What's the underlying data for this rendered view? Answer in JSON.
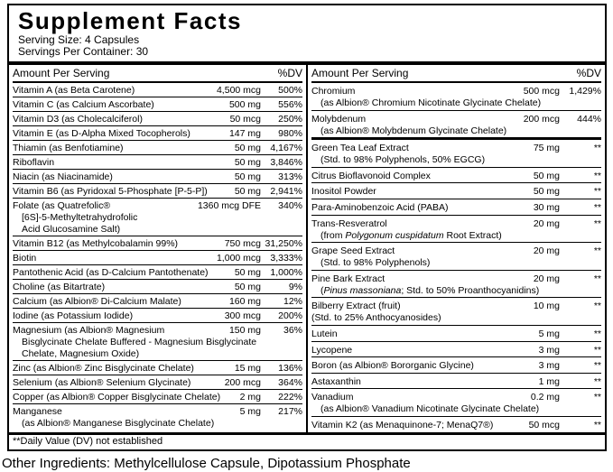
{
  "colors": {
    "background": "#ffffff",
    "text": "#000000",
    "border": "#000000"
  },
  "label": {
    "title": "Supplement Facts",
    "serving_size": "Serving Size: 4 Capsules",
    "servings_per_container": "Servings Per Container: 30",
    "column_header": {
      "amount": "Amount Per Serving",
      "dv": "%DV"
    },
    "footnote": "**Daily Value (DV) not established",
    "columns": {
      "left": {
        "rows": [
          {
            "name": "Vitamin A (as Beta Carotene)",
            "amount": "4,500 mcg",
            "dv": "500%"
          },
          {
            "name": "Vitamin C (as Calcium Ascorbate)",
            "amount": "500 mg",
            "dv": "556%"
          },
          {
            "name": "Vitamin D3 (as Cholecalciferol)",
            "amount": "50 mcg",
            "dv": "250%"
          },
          {
            "name": "Vitamin E (as D-Alpha Mixed Tocopherols)",
            "amount": "147 mg",
            "dv": "980%"
          },
          {
            "name": "Thiamin (as Benfotiamine)",
            "amount": "50 mg",
            "dv": "4,167%"
          },
          {
            "name": "Riboflavin",
            "amount": "50 mg",
            "dv": "3,846%"
          },
          {
            "name": "Niacin (as Niacinamide)",
            "amount": "50 mg",
            "dv": "313%"
          },
          {
            "name": "Vitamin B6 (as Pyridoxal 5-Phosphate [P-5-P])",
            "amount": "50 mg",
            "dv": "2,941%"
          },
          {
            "name": "Folate (as Quatrefolic®",
            "amount": "1360 mcg DFE",
            "dv": "340%",
            "sub": [
              {
                "segments": [
                  {
                    "text": "[6S]-5-Methyltetrahydrofolic"
                  }
                ]
              },
              {
                "segments": [
                  {
                    "text": "Acid Glucosamine Salt)"
                  }
                ]
              }
            ]
          },
          {
            "name": "Vitamin B12 (as Methylcobalamin 99%)",
            "amount": "750 mcg",
            "dv": "31,250%"
          },
          {
            "name": "Biotin",
            "amount": "1,000 mcg",
            "dv": "3,333%"
          },
          {
            "name": "Pantothenic Acid (as D-Calcium Pantothenate)",
            "amount": "50 mg",
            "dv": "1,000%"
          },
          {
            "name": "Choline (as Bitartrate)",
            "amount": "50 mg",
            "dv": "9%"
          },
          {
            "name": "Calcium (as Albion® Di-Calcium Malate)",
            "amount": "160 mg",
            "dv": "12%"
          },
          {
            "name": "Iodine (as Potassium Iodide)",
            "amount": "300 mcg",
            "dv": "200%"
          },
          {
            "name": "Magnesium (as Albion® Magnesium",
            "amount": "150 mg",
            "dv": "36%",
            "sub": [
              {
                "segments": [
                  {
                    "text": "Bisglycinate Chelate Buffered - Magnesium Bisglycinate"
                  }
                ]
              },
              {
                "segments": [
                  {
                    "text": "Chelate, Magnesium Oxide)"
                  }
                ]
              }
            ]
          },
          {
            "name": "Zinc (as Albion® Zinc Bisglycinate Chelate)",
            "amount": "15 mg",
            "dv": "136%"
          },
          {
            "name": "Selenium (as Albion® Selenium Glycinate)",
            "amount": "200 mcg",
            "dv": "364%"
          },
          {
            "name": "Copper (as Albion® Copper Bisglycinate Chelate)",
            "amount": "2 mg",
            "dv": "222%"
          },
          {
            "name": "Manganese",
            "amount": "5 mg",
            "dv": "217%",
            "sub": [
              {
                "segments": [
                  {
                    "text": "(as Albion® Manganese Bisglycinate Chelate)"
                  }
                ]
              }
            ]
          }
        ]
      },
      "right": {
        "rows": [
          {
            "name": "Chromium",
            "amount": "500 mcg",
            "dv": "1,429%",
            "sub": [
              {
                "segments": [
                  {
                    "text": "(as Albion® Chromium Nicotinate Glycinate Chelate)"
                  }
                ]
              }
            ]
          },
          {
            "name": "Molybdenum",
            "amount": "200 mcg",
            "dv": "444%",
            "sub": [
              {
                "segments": [
                  {
                    "text": "(as Albion® Molybdenum Glycinate Chelate)"
                  }
                ]
              }
            ]
          },
          {
            "name": "Green Tea Leaf Extract",
            "amount": "75 mg",
            "dv": "**",
            "thick_top": true,
            "sub": [
              {
                "segments": [
                  {
                    "text": "(Std. to 98% Polyphenols, 50% EGCG)"
                  }
                ]
              }
            ]
          },
          {
            "name": "Citrus Bioflavonoid Complex",
            "amount": "50 mg",
            "dv": "**"
          },
          {
            "name": "Inositol Powder",
            "amount": "50 mg",
            "dv": "**"
          },
          {
            "name": "Para-Aminobenzoic Acid (PABA)",
            "amount": "30 mg",
            "dv": "**"
          },
          {
            "name": "Trans-Resveratrol",
            "amount": "20 mg",
            "dv": "**",
            "sub": [
              {
                "segments": [
                  {
                    "text": "(from "
                  },
                  {
                    "text": "Polygonum cuspidatum",
                    "italic": true
                  },
                  {
                    "text": " Root Extract)"
                  }
                ]
              }
            ]
          },
          {
            "name": "Grape Seed Extract",
            "amount": "20 mg",
            "dv": "**",
            "sub": [
              {
                "segments": [
                  {
                    "text": "(Std. to 98% Polyphenols)"
                  }
                ]
              }
            ]
          },
          {
            "name": "Pine Bark Extract",
            "amount": "20 mg",
            "dv": "**",
            "sub": [
              {
                "segments": [
                  {
                    "text": "("
                  },
                  {
                    "text": "Pinus massoniana",
                    "italic": true
                  },
                  {
                    "text": "; Std. to 50% Proanthocyanidins)"
                  }
                ]
              }
            ]
          },
          {
            "name": "Bilberry Extract (fruit)",
            "amount": "10 mg",
            "dv": "**",
            "sub": [
              {
                "flush": true,
                "segments": [
                  {
                    "text": "(Std. to 25% Anthocyanosides)"
                  }
                ]
              }
            ]
          },
          {
            "name": "Lutein",
            "amount": "5 mg",
            "dv": "**"
          },
          {
            "name": "Lycopene",
            "amount": "3 mg",
            "dv": "**"
          },
          {
            "name": "Boron (as Albion® Bororganic Glycine)",
            "amount": "3 mg",
            "dv": "**"
          },
          {
            "name": "Astaxanthin",
            "amount": "1 mg",
            "dv": "**"
          },
          {
            "name": "Vanadium",
            "amount": "0.2 mg",
            "dv": "**",
            "sub": [
              {
                "segments": [
                  {
                    "text": "(as Albion® Vanadium Nicotinate Glycinate Chelate)"
                  }
                ]
              }
            ]
          },
          {
            "name": "Vitamin K2 (as Menaquinone-7; MenaQ7®)",
            "amount": "50 mcg",
            "dv": "**"
          }
        ]
      }
    }
  },
  "other_ingredients": "Other Ingredients: Methylcellulose Capsule, Dipotassium Phosphate"
}
